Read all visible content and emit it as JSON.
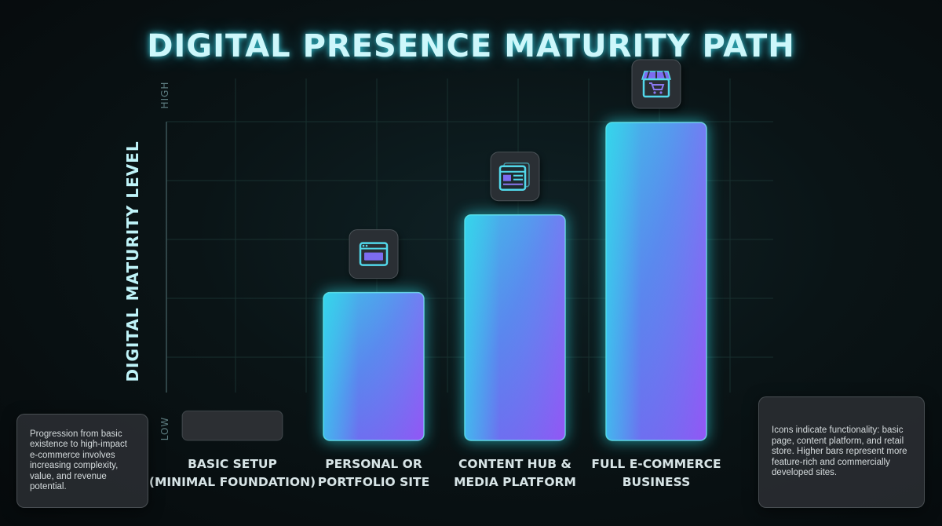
{
  "chart_data": {
    "type": "bar",
    "title": "DIGITAL PRESENCE MATURITY PATH",
    "ylabel": "DIGITAL MATURITY LEVEL",
    "xlabel": "",
    "y_ticks": {
      "low": "LOW",
      "high": "HIGH"
    },
    "ylim": [
      0,
      100
    ],
    "categories": [
      [
        "BASIC SETUP",
        "(MINIMAL FOUNDATION)"
      ],
      [
        "PERSONAL OR",
        "PORTFOLIO SITE"
      ],
      [
        "CONTENT HUB &",
        "MEDIA PLATFORM"
      ],
      [
        "FULL E-COMMERCE",
        "BUSINESS"
      ]
    ],
    "values": [
      8,
      40,
      61,
      86
    ],
    "icons": [
      "",
      "browser-window-icon",
      "content-dashboard-icon",
      "storefront-cart-icon"
    ],
    "grid": true,
    "colors": {
      "bar_top": "#3ec6e8",
      "bar_mid": "#5b86ee",
      "bar_right": "#8a4df2",
      "glow": "#2ee6f0",
      "basic_bar": "#2c2f33"
    }
  },
  "notes": {
    "left": "Progression from basic existence to high-impact e-commerce involves increasing complexity, value, and revenue potential.",
    "right": "Icons indicate functionality: basic page, content platform, and retail store. Higher bars represent more feature-rich and commercially developed sites."
  }
}
